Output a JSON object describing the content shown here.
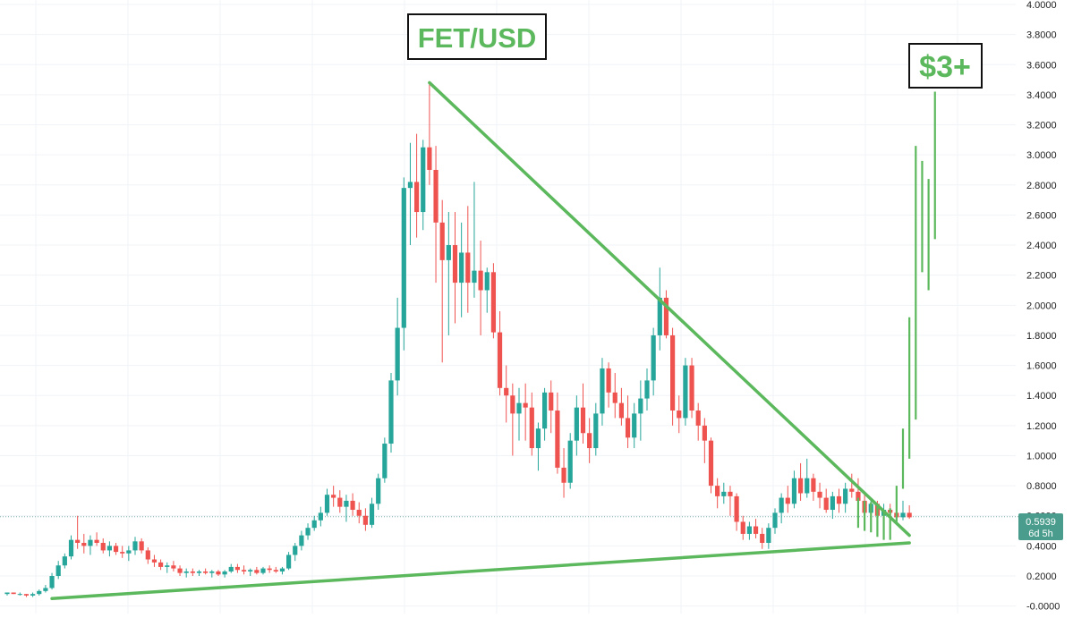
{
  "colors": {
    "up": "#26a69a",
    "down": "#ef5350",
    "annotation": "#5cb85c",
    "annotation_text": "#5cb85c",
    "grid": "#f0f3f7",
    "price_line": "#7fb1a8",
    "price_label_bg": "#4a9c8c",
    "frame": "#111111"
  },
  "chart_data": {
    "type": "candlestick",
    "symbol_label": "FET/USD",
    "target_label": "$3+",
    "y_axis": {
      "range": [
        -0.02,
        4.0
      ],
      "ticks": [
        "4.0000",
        "3.8000",
        "3.6000",
        "3.4000",
        "3.2000",
        "3.0000",
        "2.8000",
        "2.6000",
        "2.4000",
        "2.2000",
        "2.0000",
        "1.8000",
        "1.6000",
        "1.4000",
        "1.2000",
        "1.0000",
        "0.8000",
        "0.6000",
        "0.4000",
        "0.2000",
        "-0.0000"
      ],
      "tick_values": [
        4.0,
        3.8,
        3.6,
        3.4,
        3.2,
        3.0,
        2.8,
        2.6,
        2.4,
        2.2,
        2.0,
        1.8,
        1.6,
        1.4,
        1.2,
        1.0,
        0.8,
        0.6,
        0.4,
        0.2,
        0.0
      ]
    },
    "current_price": {
      "value": 0.5939,
      "label": "0.5939",
      "countdown": "6d 5h"
    },
    "grid": true,
    "candles": [
      [
        0.08,
        0.09,
        0.07,
        0.09
      ],
      [
        0.09,
        0.09,
        0.08,
        0.08
      ],
      [
        0.08,
        0.09,
        0.07,
        0.08
      ],
      [
        0.08,
        0.08,
        0.06,
        0.07
      ],
      [
        0.07,
        0.09,
        0.06,
        0.08
      ],
      [
        0.08,
        0.11,
        0.07,
        0.1
      ],
      [
        0.1,
        0.14,
        0.09,
        0.12
      ],
      [
        0.12,
        0.22,
        0.11,
        0.2
      ],
      [
        0.2,
        0.3,
        0.18,
        0.27
      ],
      [
        0.27,
        0.35,
        0.25,
        0.33
      ],
      [
        0.33,
        0.47,
        0.31,
        0.44
      ],
      [
        0.44,
        0.6,
        0.38,
        0.42
      ],
      [
        0.42,
        0.48,
        0.35,
        0.4
      ],
      [
        0.4,
        0.47,
        0.34,
        0.44
      ],
      [
        0.44,
        0.49,
        0.4,
        0.42
      ],
      [
        0.42,
        0.45,
        0.35,
        0.37
      ],
      [
        0.37,
        0.43,
        0.33,
        0.4
      ],
      [
        0.4,
        0.42,
        0.34,
        0.36
      ],
      [
        0.36,
        0.4,
        0.32,
        0.35
      ],
      [
        0.35,
        0.4,
        0.3,
        0.37
      ],
      [
        0.37,
        0.46,
        0.34,
        0.43
      ],
      [
        0.43,
        0.45,
        0.35,
        0.37
      ],
      [
        0.37,
        0.39,
        0.28,
        0.31
      ],
      [
        0.31,
        0.34,
        0.26,
        0.29
      ],
      [
        0.29,
        0.31,
        0.24,
        0.26
      ],
      [
        0.26,
        0.29,
        0.22,
        0.27
      ],
      [
        0.27,
        0.3,
        0.23,
        0.25
      ],
      [
        0.25,
        0.27,
        0.2,
        0.22
      ],
      [
        0.22,
        0.25,
        0.19,
        0.23
      ],
      [
        0.23,
        0.25,
        0.2,
        0.22
      ],
      [
        0.22,
        0.24,
        0.2,
        0.23
      ],
      [
        0.23,
        0.25,
        0.21,
        0.22
      ],
      [
        0.22,
        0.24,
        0.19,
        0.23
      ],
      [
        0.23,
        0.24,
        0.2,
        0.21
      ],
      [
        0.21,
        0.24,
        0.19,
        0.23
      ],
      [
        0.23,
        0.28,
        0.22,
        0.26
      ],
      [
        0.26,
        0.28,
        0.22,
        0.24
      ],
      [
        0.24,
        0.27,
        0.21,
        0.23
      ],
      [
        0.23,
        0.25,
        0.2,
        0.24
      ],
      [
        0.24,
        0.26,
        0.21,
        0.22
      ],
      [
        0.22,
        0.26,
        0.21,
        0.25
      ],
      [
        0.25,
        0.27,
        0.22,
        0.24
      ],
      [
        0.24,
        0.26,
        0.22,
        0.23
      ],
      [
        0.23,
        0.26,
        0.21,
        0.25
      ],
      [
        0.25,
        0.36,
        0.24,
        0.34
      ],
      [
        0.34,
        0.42,
        0.3,
        0.4
      ],
      [
        0.4,
        0.5,
        0.37,
        0.47
      ],
      [
        0.47,
        0.55,
        0.44,
        0.52
      ],
      [
        0.52,
        0.6,
        0.5,
        0.57
      ],
      [
        0.57,
        0.66,
        0.53,
        0.62
      ],
      [
        0.62,
        0.78,
        0.6,
        0.74
      ],
      [
        0.74,
        0.8,
        0.66,
        0.72
      ],
      [
        0.72,
        0.77,
        0.62,
        0.66
      ],
      [
        0.66,
        0.74,
        0.56,
        0.7
      ],
      [
        0.7,
        0.75,
        0.6,
        0.64
      ],
      [
        0.64,
        0.69,
        0.55,
        0.6
      ],
      [
        0.6,
        0.65,
        0.5,
        0.54
      ],
      [
        0.54,
        0.72,
        0.52,
        0.68
      ],
      [
        0.68,
        0.88,
        0.64,
        0.85
      ],
      [
        0.85,
        1.12,
        0.82,
        1.08
      ],
      [
        1.08,
        1.55,
        1.02,
        1.5
      ],
      [
        1.5,
        2.05,
        1.4,
        1.85
      ],
      [
        1.85,
        2.85,
        1.7,
        2.78
      ],
      [
        2.78,
        3.08,
        2.4,
        2.82
      ],
      [
        2.82,
        3.14,
        2.45,
        2.62
      ],
      [
        2.62,
        3.1,
        2.5,
        3.05
      ],
      [
        3.05,
        3.48,
        2.8,
        2.9
      ],
      [
        2.9,
        3.06,
        2.15,
        2.55
      ],
      [
        2.55,
        2.7,
        1.62,
        2.3
      ],
      [
        2.3,
        2.62,
        1.8,
        2.4
      ],
      [
        2.4,
        2.62,
        1.88,
        2.15
      ],
      [
        2.15,
        2.55,
        1.92,
        2.35
      ],
      [
        2.35,
        2.66,
        1.95,
        2.15
      ],
      [
        2.15,
        2.82,
        2.05,
        2.23
      ],
      [
        2.23,
        2.43,
        1.8,
        2.1
      ],
      [
        2.1,
        2.25,
        1.95,
        2.22
      ],
      [
        2.22,
        2.28,
        1.78,
        1.82
      ],
      [
        1.82,
        1.96,
        1.4,
        1.45
      ],
      [
        1.45,
        1.6,
        1.22,
        1.4
      ],
      [
        1.4,
        1.48,
        1.0,
        1.28
      ],
      [
        1.28,
        1.45,
        1.1,
        1.35
      ],
      [
        1.35,
        1.48,
        1.1,
        1.32
      ],
      [
        1.32,
        1.42,
        1.0,
        1.05
      ],
      [
        1.05,
        1.22,
        0.9,
        1.18
      ],
      [
        1.18,
        1.45,
        1.1,
        1.42
      ],
      [
        1.42,
        1.5,
        1.15,
        1.3
      ],
      [
        1.3,
        1.42,
        0.88,
        0.92
      ],
      [
        0.92,
        1.05,
        0.72,
        0.82
      ],
      [
        0.82,
        1.15,
        0.78,
        1.1
      ],
      [
        1.1,
        1.4,
        1.0,
        1.32
      ],
      [
        1.32,
        1.48,
        1.08,
        1.15
      ],
      [
        1.15,
        1.25,
        0.95,
        1.05
      ],
      [
        1.05,
        1.35,
        1.0,
        1.28
      ],
      [
        1.28,
        1.65,
        1.2,
        1.58
      ],
      [
        1.58,
        1.62,
        1.32,
        1.42
      ],
      [
        1.42,
        1.55,
        1.25,
        1.35
      ],
      [
        1.35,
        1.45,
        1.2,
        1.25
      ],
      [
        1.25,
        1.4,
        1.05,
        1.12
      ],
      [
        1.12,
        1.35,
        1.05,
        1.28
      ],
      [
        1.28,
        1.5,
        1.1,
        1.38
      ],
      [
        1.38,
        1.58,
        1.3,
        1.5
      ],
      [
        1.5,
        1.85,
        1.4,
        1.8
      ],
      [
        1.8,
        2.25,
        1.7,
        2.05
      ],
      [
        2.05,
        2.1,
        1.78,
        1.8
      ],
      [
        1.8,
        1.85,
        1.2,
        1.3
      ],
      [
        1.3,
        1.4,
        1.15,
        1.25
      ],
      [
        1.25,
        1.65,
        1.2,
        1.6
      ],
      [
        1.6,
        1.65,
        1.25,
        1.3
      ],
      [
        1.3,
        1.35,
        1.1,
        1.2
      ],
      [
        1.2,
        1.25,
        0.95,
        1.1
      ],
      [
        1.1,
        1.12,
        0.75,
        0.8
      ],
      [
        0.8,
        0.85,
        0.65,
        0.73
      ],
      [
        0.73,
        0.82,
        0.68,
        0.76
      ],
      [
        0.76,
        0.8,
        0.6,
        0.73
      ],
      [
        0.73,
        0.75,
        0.5,
        0.56
      ],
      [
        0.56,
        0.6,
        0.44,
        0.48
      ],
      [
        0.48,
        0.56,
        0.44,
        0.53
      ],
      [
        0.53,
        0.58,
        0.45,
        0.48
      ],
      [
        0.48,
        0.52,
        0.38,
        0.42
      ],
      [
        0.42,
        0.55,
        0.38,
        0.52
      ],
      [
        0.52,
        0.65,
        0.48,
        0.62
      ],
      [
        0.62,
        0.75,
        0.55,
        0.72
      ],
      [
        0.72,
        0.8,
        0.62,
        0.68
      ],
      [
        0.68,
        0.9,
        0.65,
        0.85
      ],
      [
        0.85,
        0.95,
        0.7,
        0.75
      ],
      [
        0.75,
        0.98,
        0.72,
        0.85
      ],
      [
        0.85,
        0.88,
        0.7,
        0.76
      ],
      [
        0.76,
        0.82,
        0.65,
        0.72
      ],
      [
        0.72,
        0.78,
        0.62,
        0.64
      ],
      [
        0.64,
        0.76,
        0.58,
        0.73
      ],
      [
        0.73,
        0.78,
        0.62,
        0.68
      ],
      [
        0.68,
        0.82,
        0.62,
        0.78
      ],
      [
        0.78,
        0.88,
        0.72,
        0.76
      ],
      [
        0.76,
        0.85,
        0.66,
        0.7
      ],
      [
        0.7,
        0.75,
        0.58,
        0.62
      ],
      [
        0.62,
        0.72,
        0.58,
        0.68
      ],
      [
        0.68,
        0.7,
        0.58,
        0.6
      ],
      [
        0.6,
        0.68,
        0.56,
        0.64
      ],
      [
        0.64,
        0.68,
        0.58,
        0.62
      ],
      [
        0.62,
        0.65,
        0.55,
        0.59
      ],
      [
        0.59,
        0.7,
        0.57,
        0.62
      ],
      [
        0.62,
        0.67,
        0.58,
        0.59
      ]
    ],
    "annotations": {
      "descending_trendline": {
        "from": [
          66,
          3.48
        ],
        "to": [
          141,
          0.47
        ]
      },
      "ascending_trendline": {
        "from": [
          7,
          0.05
        ],
        "to": [
          141,
          0.42
        ]
      },
      "projection_bars": [
        [
          133,
          0.72,
          0.52
        ],
        [
          134,
          0.7,
          0.5
        ],
        [
          135,
          0.69,
          0.49
        ],
        [
          136,
          0.66,
          0.46
        ],
        [
          137,
          0.64,
          0.44
        ],
        [
          138,
          0.65,
          0.44
        ],
        [
          139,
          0.8,
          0.56
        ],
        [
          140,
          1.18,
          0.78
        ],
        [
          141,
          1.92,
          0.98
        ],
        [
          142,
          3.06,
          1.24
        ],
        [
          143,
          2.96,
          2.22
        ],
        [
          144,
          2.84,
          2.1
        ],
        [
          145,
          3.42,
          2.44
        ]
      ]
    }
  }
}
